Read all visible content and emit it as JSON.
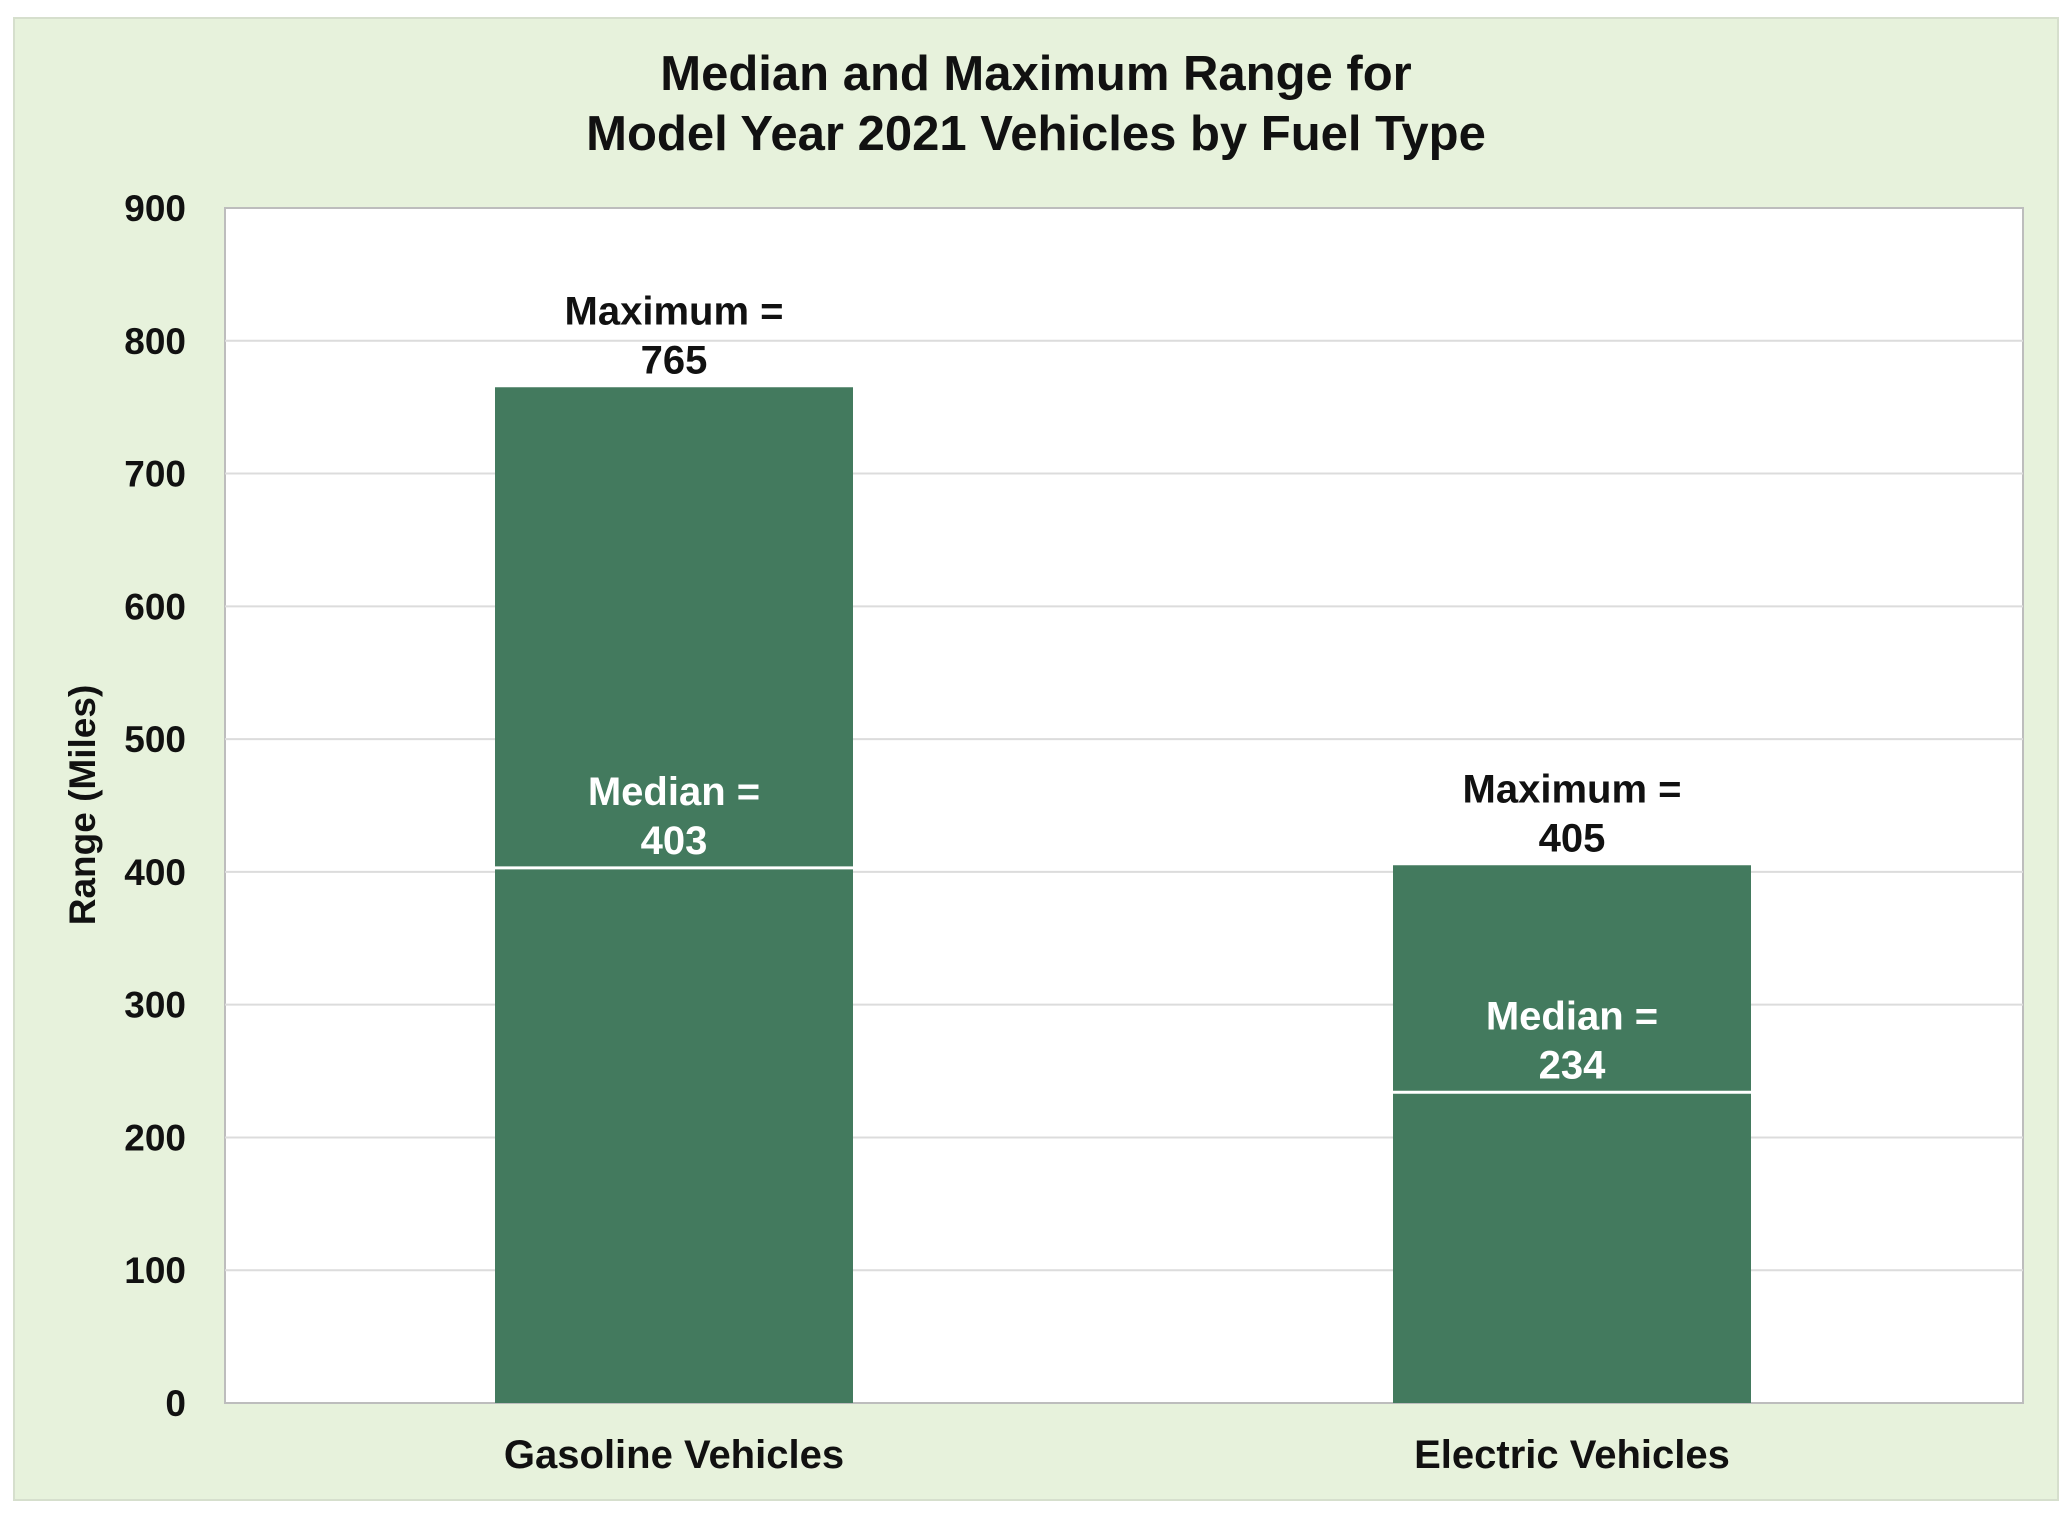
{
  "colors": {
    "background": "#e7f2dc",
    "plot_area": "#ffffff",
    "bar": "#437a5e",
    "gridline": "#dcdcdc",
    "median_line": "#ffffff"
  },
  "chart_data": {
    "type": "bar",
    "title_lines": [
      "Median and Maximum Range for",
      "Model Year 2021 Vehicles by Fuel Type"
    ],
    "xlabel": "",
    "ylabel": "Range (Miles)",
    "ylim": [
      0,
      900
    ],
    "y_ticks": [
      0,
      100,
      200,
      300,
      400,
      500,
      600,
      700,
      800,
      900
    ],
    "grid": true,
    "categories": [
      "Gasoline Vehicles",
      "Electric Vehicles"
    ],
    "maximum": [
      765,
      405
    ],
    "median": [
      403,
      234
    ],
    "max_labels": [
      [
        "Maximum =",
        "765"
      ],
      [
        "Maximum =",
        "405"
      ]
    ],
    "median_labels": [
      [
        "Median =",
        "403"
      ],
      [
        "Median =",
        "234"
      ]
    ]
  }
}
